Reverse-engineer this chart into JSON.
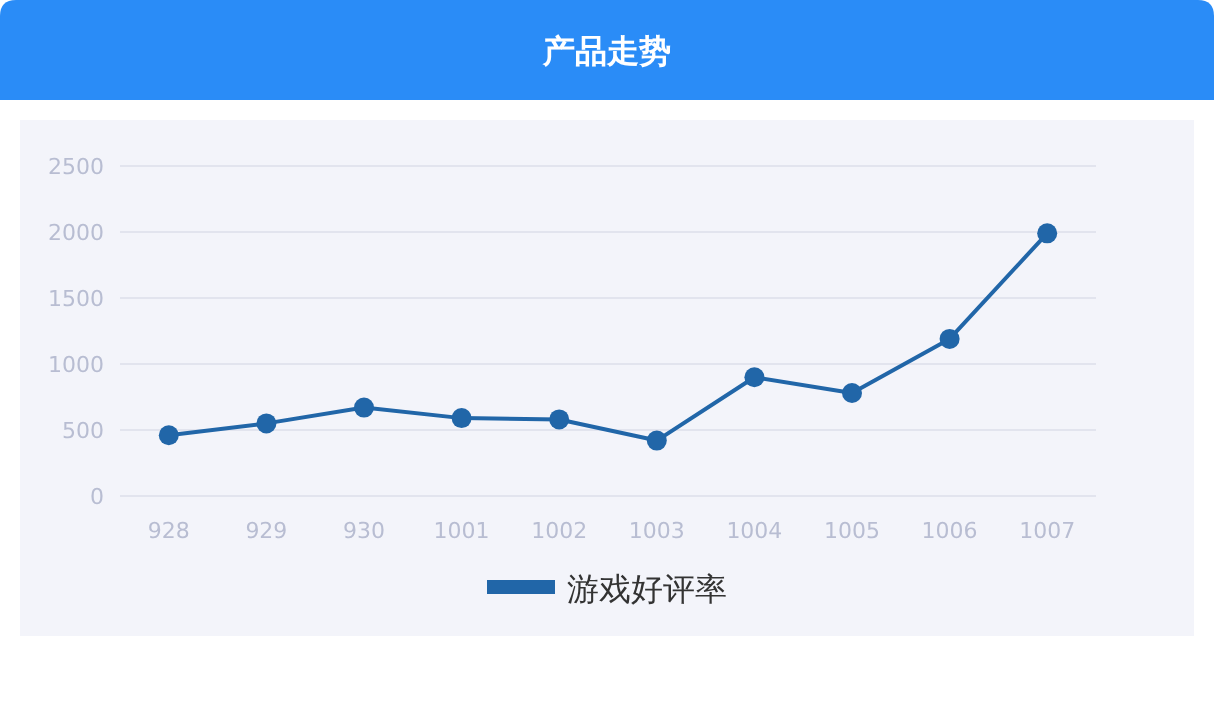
{
  "chart_data": {
    "type": "line",
    "title": "产品走势",
    "categories": [
      "928",
      "929",
      "930",
      "1001",
      "1002",
      "1003",
      "1004",
      "1005",
      "1006",
      "1007"
    ],
    "series": [
      {
        "name": "游戏好评率",
        "color": "#2166a8",
        "values": [
          460,
          550,
          670,
          590,
          580,
          420,
          900,
          780,
          1190,
          1990
        ]
      }
    ],
    "ylim": [
      0,
      2500
    ],
    "yticks": [
      0,
      500,
      1000,
      1500,
      2000,
      2500
    ],
    "grid": "y",
    "legend": "bottom",
    "marker": "circle",
    "line_style": "solid"
  }
}
